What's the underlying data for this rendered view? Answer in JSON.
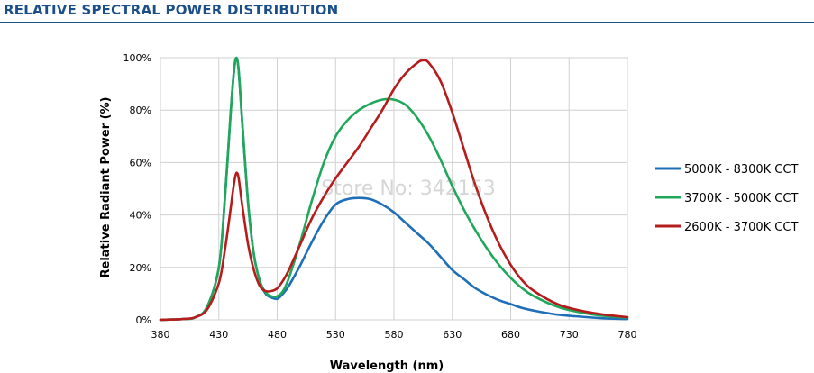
{
  "header": {
    "title": "RELATIVE SPECTRAL POWER DISTRIBUTION"
  },
  "watermark": "Store No: 342153",
  "chart_data": {
    "type": "line",
    "title": "RELATIVE SPECTRAL POWER DISTRIBUTION",
    "xlabel": "Wavelength (nm)",
    "ylabel": "Relative Radiant Power (%)",
    "xlim": [
      380,
      780
    ],
    "ylim": [
      0,
      100
    ],
    "x_ticks": [
      380,
      430,
      480,
      530,
      580,
      630,
      680,
      730,
      780
    ],
    "y_ticks": [
      0,
      20,
      40,
      60,
      80,
      100
    ],
    "y_tick_labels": [
      "0%",
      "20%",
      "40%",
      "60%",
      "80%",
      "100%"
    ],
    "grid": true,
    "legend_position": "right",
    "series": [
      {
        "name": "5000K - 8300K CCT",
        "color": "#1f6fb8",
        "x": [
          380,
          400,
          410,
          420,
          430,
          435,
          440,
          443,
          445,
          447,
          450,
          455,
          460,
          465,
          470,
          475,
          480,
          485,
          490,
          500,
          510,
          520,
          530,
          540,
          550,
          560,
          570,
          580,
          590,
          600,
          610,
          620,
          630,
          640,
          650,
          660,
          670,
          680,
          690,
          700,
          720,
          740,
          760,
          780
        ],
        "y": [
          0,
          0.3,
          1,
          5,
          20,
          45,
          78,
          95,
          100,
          95,
          76,
          45,
          25,
          15,
          10,
          8.5,
          8,
          10,
          13,
          21,
          30,
          38,
          44,
          46,
          46.5,
          46,
          44,
          41,
          37,
          33,
          29,
          24,
          19,
          15.5,
          12,
          9.5,
          7.5,
          6,
          4.5,
          3.5,
          2,
          1.2,
          0.6,
          0.3
        ]
      },
      {
        "name": "3700K - 5000K CCT",
        "color": "#20a85a",
        "x": [
          380,
          400,
          410,
          420,
          430,
          435,
          440,
          443,
          445,
          447,
          450,
          455,
          460,
          465,
          470,
          475,
          480,
          485,
          490,
          500,
          510,
          520,
          530,
          540,
          550,
          560,
          570,
          580,
          590,
          600,
          610,
          620,
          630,
          640,
          650,
          660,
          670,
          680,
          690,
          700,
          720,
          740,
          760,
          780
        ],
        "y": [
          0,
          0.3,
          1,
          5,
          20,
          45,
          78,
          95,
          100,
          95,
          76,
          45,
          25,
          15,
          10.5,
          9,
          9,
          11,
          16,
          30,
          46,
          60,
          70,
          76,
          80,
          82.5,
          84,
          84,
          82,
          77,
          70,
          61,
          51,
          42,
          34,
          27,
          21,
          16,
          12,
          9,
          5,
          2.8,
          1.5,
          0.8
        ]
      },
      {
        "name": "2600K - 3700K CCT",
        "color": "#b71c1c",
        "x": [
          380,
          400,
          410,
          420,
          430,
          435,
          440,
          443,
          445,
          447,
          450,
          455,
          460,
          465,
          470,
          475,
          480,
          485,
          490,
          500,
          510,
          520,
          530,
          540,
          550,
          560,
          570,
          580,
          590,
          600,
          605,
          610,
          620,
          630,
          640,
          650,
          660,
          670,
          680,
          690,
          700,
          720,
          740,
          760,
          780
        ],
        "y": [
          0,
          0.3,
          1,
          4,
          14,
          26,
          42,
          52,
          56,
          54,
          44,
          29,
          19,
          13,
          11,
          11,
          12,
          15,
          19,
          29,
          39,
          47,
          54,
          60,
          66,
          73,
          80,
          88,
          94,
          98,
          99,
          98,
          91,
          79,
          65,
          51,
          39,
          29,
          21,
          15,
          11,
          6,
          3.5,
          2,
          1
        ]
      }
    ]
  }
}
